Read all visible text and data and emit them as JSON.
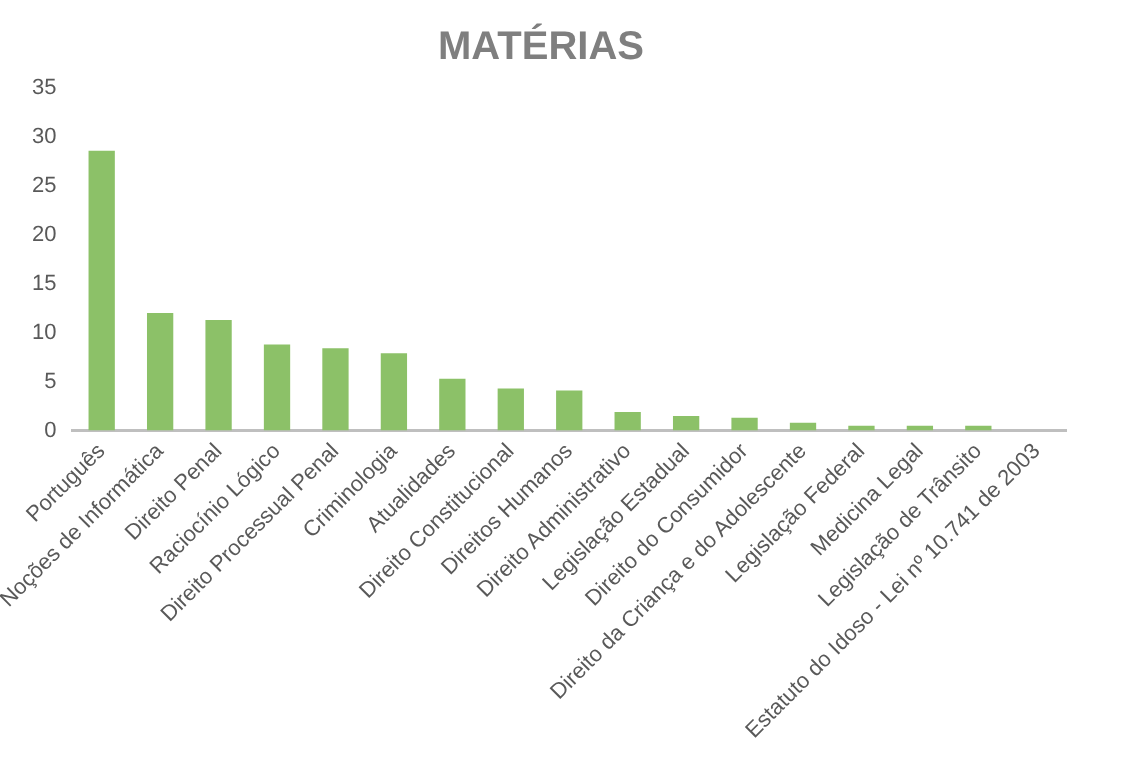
{
  "chart_data": {
    "type": "bar",
    "title": "MATÉRIAS",
    "categories": [
      "Português",
      "Noções de Informática",
      "Direito Penal",
      "Raciocínio Lógico",
      "Direito Processual Penal",
      "Criminologia",
      "Atualidades",
      "Direito Constitucional",
      "Direitos Humanos",
      "Direito Administrativo",
      "Legislação Estadual",
      "Direito do Consumidor",
      "Direito da Criança e do Adolescente",
      "Legislação Federal",
      "Medicina Legal",
      "Legislação de Trânsito",
      "Estatuto do Idoso - Lei nº 10.741 de 2003"
    ],
    "values": [
      28.6,
      12.0,
      11.3,
      8.8,
      8.4,
      7.9,
      5.3,
      4.3,
      4.1,
      1.9,
      1.5,
      1.3,
      0.8,
      0.5,
      0.5,
      0.5,
      0
    ],
    "color": "#8cc168",
    "ylim": [
      0,
      35
    ],
    "yticks": [
      0,
      5,
      10,
      15,
      20,
      25,
      30,
      35
    ],
    "grid": false,
    "legend": false
  }
}
